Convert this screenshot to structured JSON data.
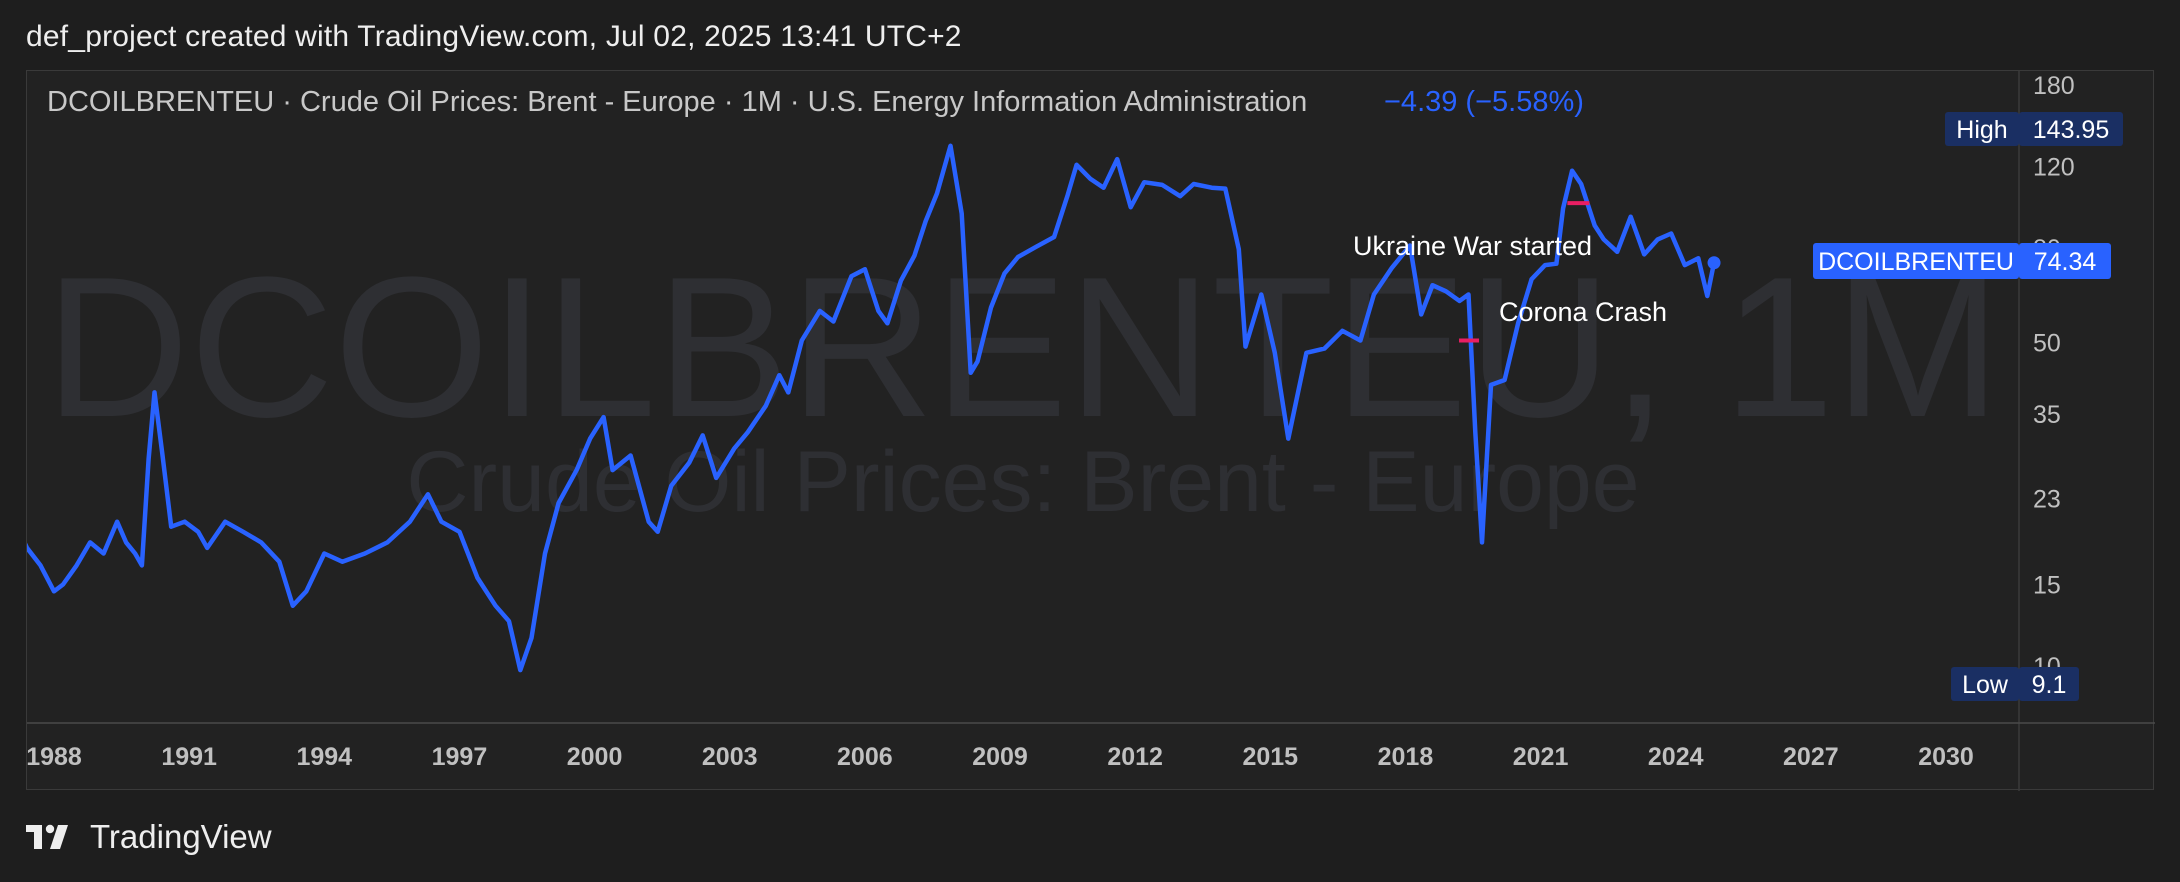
{
  "header": {
    "attribution": "def_project created with TradingView.com, Jul 02, 2025 13:41 UTC+2"
  },
  "footer": {
    "brand": "TradingView"
  },
  "colors": {
    "background": "#1e1e1e",
    "pane": "#222222",
    "line": "#2962ff",
    "accent_label": "#2962ff",
    "high_low_bg": "#1a2f63",
    "marker": "#e91e63",
    "watermark": "#2e2f33",
    "axis_text": "#c0c0c0"
  },
  "chart_data": {
    "type": "line",
    "symbol": "DCOILBRENTEU",
    "title": "DCOILBRENTEU · Crude Oil Prices: Brent - Europe · 1M · U.S. Energy Information Administration",
    "change": "−4.39 (−5.58%)",
    "watermark_main": "DCOILBRENTEU, 1M",
    "watermark_sub": "Crude Oil Prices: Brent - Europe",
    "scale": "log",
    "ylim": [
      9.1,
      180
    ],
    "y_ticks": [
      "180",
      "120",
      "80",
      "50",
      "35",
      "23",
      "15",
      "10"
    ],
    "x_ticks": [
      "1988",
      "1991",
      "1994",
      "1997",
      "2000",
      "2003",
      "2006",
      "2009",
      "2012",
      "2015",
      "2018",
      "2021",
      "2024",
      "2027",
      "2030"
    ],
    "x_range": [
      1988.0,
      2032.0
    ],
    "last_label": "DCOILBRENTEU",
    "last_value": "74.34",
    "high_label": "High",
    "high_value": "143.95",
    "low_label": "Low",
    "low_value": "9.1",
    "annotations": [
      {
        "text": "Ukraine War started",
        "x": 2022.15,
        "y": 100
      },
      {
        "text": "Corona Crash",
        "x": 2020.1,
        "y": 51
      }
    ],
    "series": [
      {
        "values": [
          [
            1987.5,
            18.5
          ],
          [
            1987.8,
            19.8
          ],
          [
            1988.0,
            18.0
          ],
          [
            1988.3,
            16.5
          ],
          [
            1988.6,
            14.5
          ],
          [
            1988.8,
            15.0
          ],
          [
            1989.1,
            16.5
          ],
          [
            1989.4,
            18.5
          ],
          [
            1989.7,
            17.5
          ],
          [
            1990.0,
            20.5
          ],
          [
            1990.2,
            18.5
          ],
          [
            1990.4,
            17.5
          ],
          [
            1990.55,
            16.5
          ],
          [
            1990.7,
            28.0
          ],
          [
            1990.83,
            39.0
          ],
          [
            1991.0,
            29.0
          ],
          [
            1991.2,
            20.0
          ],
          [
            1991.5,
            20.5
          ],
          [
            1991.8,
            19.5
          ],
          [
            1992.0,
            18.0
          ],
          [
            1992.4,
            20.5
          ],
          [
            1992.8,
            19.5
          ],
          [
            1993.2,
            18.5
          ],
          [
            1993.6,
            16.8
          ],
          [
            1993.9,
            13.5
          ],
          [
            1994.2,
            14.5
          ],
          [
            1994.6,
            17.5
          ],
          [
            1995.0,
            16.8
          ],
          [
            1995.5,
            17.5
          ],
          [
            1996.0,
            18.5
          ],
          [
            1996.5,
            20.5
          ],
          [
            1996.9,
            23.5
          ],
          [
            1997.2,
            20.5
          ],
          [
            1997.6,
            19.5
          ],
          [
            1998.0,
            15.5
          ],
          [
            1998.4,
            13.5
          ],
          [
            1998.7,
            12.5
          ],
          [
            1998.95,
            9.8
          ],
          [
            1999.2,
            11.5
          ],
          [
            1999.5,
            17.5
          ],
          [
            1999.8,
            22.5
          ],
          [
            2000.2,
            26.5
          ],
          [
            2000.5,
            31.0
          ],
          [
            2000.8,
            34.5
          ],
          [
            2001.0,
            26.5
          ],
          [
            2001.4,
            28.5
          ],
          [
            2001.8,
            20.5
          ],
          [
            2002.0,
            19.5
          ],
          [
            2002.3,
            24.5
          ],
          [
            2002.7,
            27.5
          ],
          [
            2003.0,
            31.5
          ],
          [
            2003.3,
            25.5
          ],
          [
            2003.7,
            29.5
          ],
          [
            2004.0,
            32.0
          ],
          [
            2004.4,
            36.5
          ],
          [
            2004.7,
            42.5
          ],
          [
            2004.9,
            39.0
          ],
          [
            2005.2,
            50.5
          ],
          [
            2005.6,
            58.5
          ],
          [
            2005.9,
            55.5
          ],
          [
            2006.3,
            69.5
          ],
          [
            2006.6,
            72.0
          ],
          [
            2006.9,
            58.5
          ],
          [
            2007.1,
            55.0
          ],
          [
            2007.4,
            68.0
          ],
          [
            2007.7,
            77.0
          ],
          [
            2007.95,
            91.5
          ],
          [
            2008.2,
            105.0
          ],
          [
            2008.5,
            133.0
          ],
          [
            2008.75,
            95.0
          ],
          [
            2008.95,
            43.0
          ],
          [
            2009.1,
            45.5
          ],
          [
            2009.4,
            59.5
          ],
          [
            2009.7,
            70.5
          ],
          [
            2010.0,
            76.5
          ],
          [
            2010.4,
            80.5
          ],
          [
            2010.8,
            84.5
          ],
          [
            2011.1,
            104.0
          ],
          [
            2011.3,
            121.0
          ],
          [
            2011.6,
            113.0
          ],
          [
            2011.9,
            108.0
          ],
          [
            2012.2,
            124.5
          ],
          [
            2012.5,
            98.0
          ],
          [
            2012.8,
            111.0
          ],
          [
            2013.2,
            109.5
          ],
          [
            2013.6,
            103.5
          ],
          [
            2013.9,
            110.0
          ],
          [
            2014.3,
            108.0
          ],
          [
            2014.6,
            107.5
          ],
          [
            2014.9,
            79.5
          ],
          [
            2015.05,
            49.0
          ],
          [
            2015.4,
            63.5
          ],
          [
            2015.7,
            47.5
          ],
          [
            2016.0,
            31.0
          ],
          [
            2016.4,
            47.5
          ],
          [
            2016.8,
            48.5
          ],
          [
            2017.2,
            53.0
          ],
          [
            2017.6,
            50.5
          ],
          [
            2017.9,
            63.5
          ],
          [
            2018.3,
            72.5
          ],
          [
            2018.7,
            81.0
          ],
          [
            2018.95,
            57.5
          ],
          [
            2019.2,
            66.5
          ],
          [
            2019.5,
            64.5
          ],
          [
            2019.8,
            61.5
          ],
          [
            2020.0,
            63.5
          ],
          [
            2020.15,
            32.0
          ],
          [
            2020.3,
            18.5
          ],
          [
            2020.5,
            40.5
          ],
          [
            2020.8,
            41.5
          ],
          [
            2021.1,
            55.0
          ],
          [
            2021.4,
            68.5
          ],
          [
            2021.7,
            73.5
          ],
          [
            2021.95,
            74.0
          ],
          [
            2022.1,
            97.5
          ],
          [
            2022.3,
            117.5
          ],
          [
            2022.5,
            110.0
          ],
          [
            2022.8,
            89.5
          ],
          [
            2023.0,
            83.5
          ],
          [
            2023.3,
            78.5
          ],
          [
            2023.6,
            93.5
          ],
          [
            2023.9,
            77.5
          ],
          [
            2024.2,
            83.5
          ],
          [
            2024.5,
            86.0
          ],
          [
            2024.8,
            73.5
          ],
          [
            2025.1,
            76.0
          ],
          [
            2025.3,
            63.0
          ],
          [
            2025.45,
            74.34
          ]
        ]
      }
    ]
  }
}
